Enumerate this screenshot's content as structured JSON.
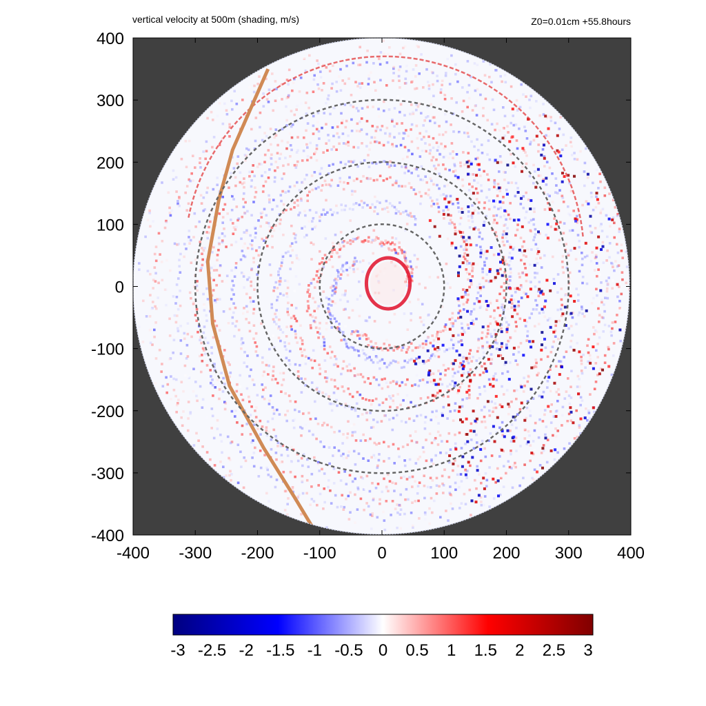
{
  "chart_data": {
    "type": "heatmap",
    "title": "vertical velocity at 500m (shading, m/s)",
    "annotation": "Z0=0.01cm  +55.8hours",
    "xlim": [
      -400,
      400
    ],
    "ylim": [
      -400,
      400
    ],
    "x_ticks": [
      -400,
      -300,
      -200,
      -100,
      0,
      100,
      200,
      300,
      400
    ],
    "y_ticks": [
      -400,
      -300,
      -200,
      -100,
      0,
      100,
      200,
      300,
      400
    ],
    "x_tick_labels": [
      "-400",
      "-300",
      "-200",
      "-100",
      "0",
      "100",
      "200",
      "300",
      "400"
    ],
    "y_tick_labels": [
      "400",
      "300",
      "200",
      "100",
      "0",
      "-100",
      "-200",
      "-300",
      "-400"
    ],
    "domain_radius": 400,
    "range_rings": [
      100,
      200,
      300
    ],
    "colorbar": {
      "min": -3,
      "max": 3,
      "ticks": [
        -3,
        -2.5,
        -2,
        -1.5,
        -1,
        -0.5,
        0,
        0.5,
        1,
        1.5,
        2,
        2.5,
        3
      ],
      "tick_labels": [
        "-3",
        "-2.5",
        "-2",
        "-1.5",
        "-1",
        "-0.5",
        "0",
        "0.5",
        "1",
        "1.5",
        "2",
        "2.5",
        "3"
      ],
      "colors": [
        "#000080",
        "#0000ff",
        "#ffffff",
        "#ff0000",
        "#800000"
      ]
    },
    "features": {
      "eyewall_radius_km": 35,
      "coastline_color": "#d08a55",
      "outside_domain_color": "#404040",
      "ring_color": "#666666"
    }
  }
}
